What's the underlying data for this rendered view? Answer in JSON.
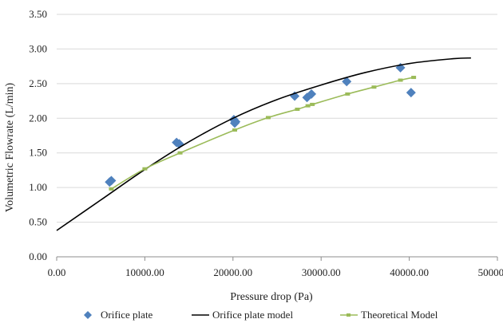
{
  "chart_data": {
    "type": "scatter",
    "title": "",
    "xlabel": "Pressure drop (Pa)",
    "ylabel": "Volumetric Flowrate (L/min)",
    "xlim": [
      0,
      50000
    ],
    "ylim": [
      0,
      3.5
    ],
    "x_ticks": [
      0,
      10000,
      20000,
      30000,
      40000,
      50000
    ],
    "x_tick_labels": [
      "0.00",
      "10000.00",
      "20000.00",
      "30000.00",
      "40000.00",
      "50000.00"
    ],
    "y_ticks": [
      0,
      0.5,
      1.0,
      1.5,
      2.0,
      2.5,
      3.0,
      3.5
    ],
    "y_tick_labels": [
      "0.00",
      "0.50",
      "1.00",
      "1.50",
      "2.00",
      "2.50",
      "3.00",
      "3.50"
    ],
    "grid": "horizontal",
    "legend_position": "bottom",
    "series": [
      {
        "name": "Orifice plate",
        "kind": "markers",
        "marker": "diamond",
        "color": "#4f81bd",
        "points": [
          {
            "x": 6000,
            "y": 1.08
          },
          {
            "x": 6200,
            "y": 1.1
          },
          {
            "x": 13600,
            "y": 1.65
          },
          {
            "x": 13900,
            "y": 1.63
          },
          {
            "x": 20100,
            "y": 1.98
          },
          {
            "x": 20300,
            "y": 1.95
          },
          {
            "x": 20200,
            "y": 1.93
          },
          {
            "x": 27000,
            "y": 2.32
          },
          {
            "x": 28400,
            "y": 2.3
          },
          {
            "x": 28900,
            "y": 2.35
          },
          {
            "x": 32900,
            "y": 2.53
          },
          {
            "x": 39000,
            "y": 2.73
          },
          {
            "x": 40200,
            "y": 2.37
          }
        ]
      },
      {
        "name": "Orifice plate model",
        "kind": "line",
        "color": "#000000",
        "points": [
          {
            "x": 0,
            "y": 0.38
          },
          {
            "x": 5000,
            "y": 0.82
          },
          {
            "x": 10000,
            "y": 1.26
          },
          {
            "x": 15000,
            "y": 1.66
          },
          {
            "x": 20000,
            "y": 2.0
          },
          {
            "x": 25000,
            "y": 2.27
          },
          {
            "x": 30000,
            "y": 2.48
          },
          {
            "x": 35000,
            "y": 2.66
          },
          {
            "x": 40000,
            "y": 2.79
          },
          {
            "x": 45000,
            "y": 2.86
          },
          {
            "x": 47000,
            "y": 2.87
          }
        ]
      },
      {
        "name": "Theoretical Model",
        "kind": "line-markers",
        "marker": "square",
        "color": "#9bbb59",
        "points": [
          {
            "x": 6200,
            "y": 0.98
          },
          {
            "x": 10000,
            "y": 1.27
          },
          {
            "x": 14000,
            "y": 1.5
          },
          {
            "x": 20200,
            "y": 1.83
          },
          {
            "x": 24000,
            "y": 2.01
          },
          {
            "x": 27300,
            "y": 2.13
          },
          {
            "x": 28500,
            "y": 2.18
          },
          {
            "x": 29000,
            "y": 2.2
          },
          {
            "x": 33000,
            "y": 2.35
          },
          {
            "x": 36000,
            "y": 2.45
          },
          {
            "x": 39000,
            "y": 2.55
          },
          {
            "x": 40500,
            "y": 2.59
          }
        ]
      }
    ]
  }
}
